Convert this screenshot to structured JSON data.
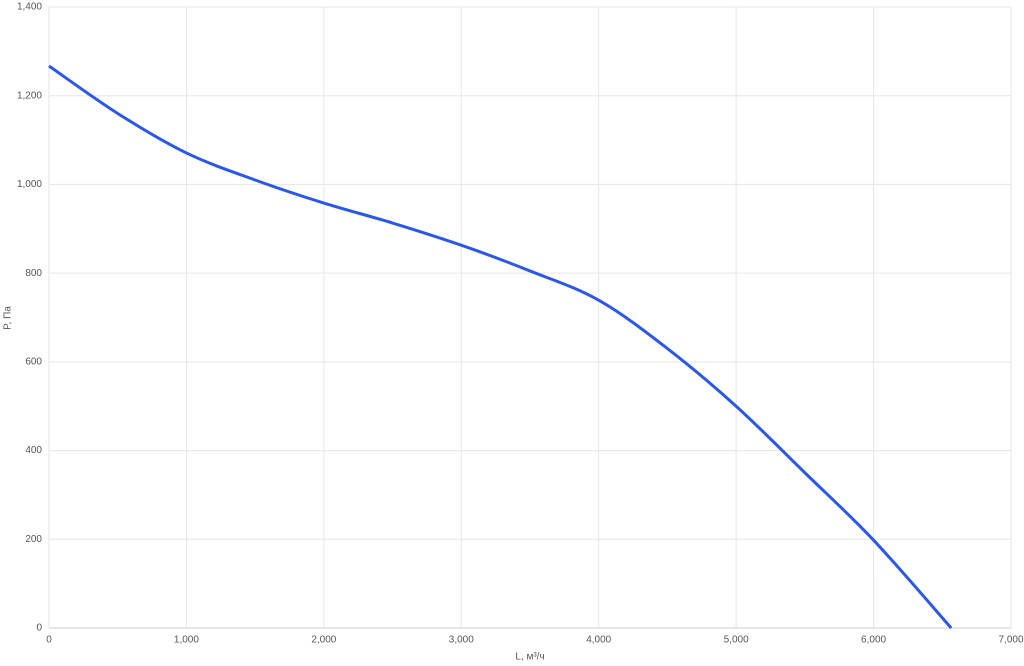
{
  "chart_data": {
    "type": "line",
    "x_label": "L, м³/ч",
    "y_label": "P, Па",
    "x": [
      0,
      500,
      1000,
      1500,
      2000,
      2500,
      3000,
      3500,
      4000,
      4500,
      5000,
      5500,
      6000,
      6565
    ],
    "series": [
      {
        "name": "P",
        "color": "#2b58e6",
        "values": [
          1267,
          1160,
          1071,
          1010,
          958,
          913,
          863,
          805,
          739,
          630,
          500,
          350,
          198,
          0
        ]
      }
    ],
    "xlim": [
      0,
      7000
    ],
    "xticks": [
      0,
      {
        "value": 1000,
        "label": "1,000"
      },
      {
        "value": 2000,
        "label": "2,000"
      },
      {
        "value": 3000,
        "label": "3,000"
      },
      {
        "value": 4000,
        "label": "4,000"
      },
      {
        "value": 5000,
        "label": "5,000"
      },
      {
        "value": 6000,
        "label": "6,000"
      },
      {
        "value": 7000,
        "label": "7,000"
      }
    ],
    "ylim": [
      0,
      1400
    ],
    "yticks": [
      0,
      200,
      400,
      600,
      800,
      {
        "value": 1000,
        "label": "1,000"
      },
      {
        "value": 1200,
        "label": "1,200"
      },
      {
        "value": 1400,
        "label": "1,400"
      }
    ],
    "grid": true
  }
}
